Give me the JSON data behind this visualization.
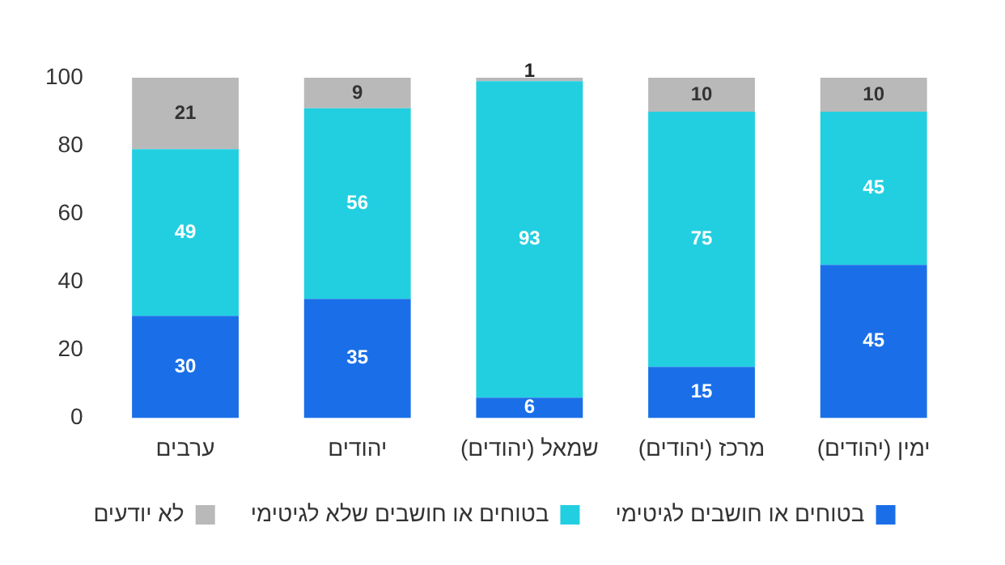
{
  "chart_data": {
    "type": "bar",
    "stacked": true,
    "categories": [
      "ערבים",
      "יהודים",
      "שמאל (יהודים)",
      "מרכז (יהודים)",
      "ימין (יהודים)"
    ],
    "series": [
      {
        "name": "בטוחים או חושבים לגיטימי",
        "color": "#1a6fe8",
        "values": [
          30,
          35,
          6,
          15,
          45
        ]
      },
      {
        "name": "בטוחים או חושבים שלא לגיטימי",
        "color": "#22cfe0",
        "values": [
          49,
          56,
          93,
          75,
          45
        ]
      },
      {
        "name": "לא יודעים",
        "color": "#b9b9b9",
        "values": [
          21,
          9,
          1,
          10,
          10
        ]
      }
    ],
    "ylim": [
      0,
      100
    ],
    "yticks": [
      0,
      20,
      40,
      60,
      80,
      100
    ],
    "grid": false,
    "legend": "bottom",
    "data_labels": true
  }
}
